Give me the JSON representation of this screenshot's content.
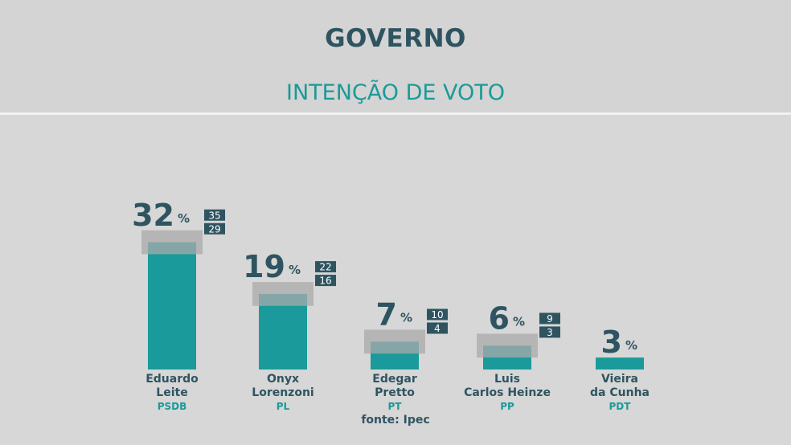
{
  "header": {
    "title": "GOVERNO",
    "subtitle": "INTENÇÃO DE VOTO"
  },
  "source": "fonte: Ipec",
  "colors": {
    "bar": "#1a9a9a",
    "range_band": "#a9aaa9",
    "text_dark": "#2f5461",
    "party": "#1a9a9a",
    "range_box": "#2f5461"
  },
  "chart_data": {
    "type": "bar",
    "title": "INTENÇÃO DE VOTO",
    "unit": "%",
    "categories": [
      "Eduardo Leite",
      "Onyx Lorenzoni",
      "Edegar Pretto",
      "Luis Carlos Heinze",
      "Vieira da Cunha"
    ],
    "label_lines": [
      [
        "Eduardo",
        "Leite"
      ],
      [
        "Onyx",
        "Lorenzoni"
      ],
      [
        "Edegar",
        "Pretto"
      ],
      [
        "Luis",
        "Carlos Heinze"
      ],
      [
        "Vieira",
        "da Cunha"
      ]
    ],
    "parties": [
      "PSDB",
      "PL",
      "PT",
      "PP",
      "PDT"
    ],
    "values": [
      32,
      19,
      7,
      6,
      3
    ],
    "range_high": [
      35,
      22,
      10,
      9,
      null
    ],
    "range_low": [
      29,
      16,
      4,
      3,
      null
    ],
    "ylim": [
      0,
      35
    ]
  }
}
